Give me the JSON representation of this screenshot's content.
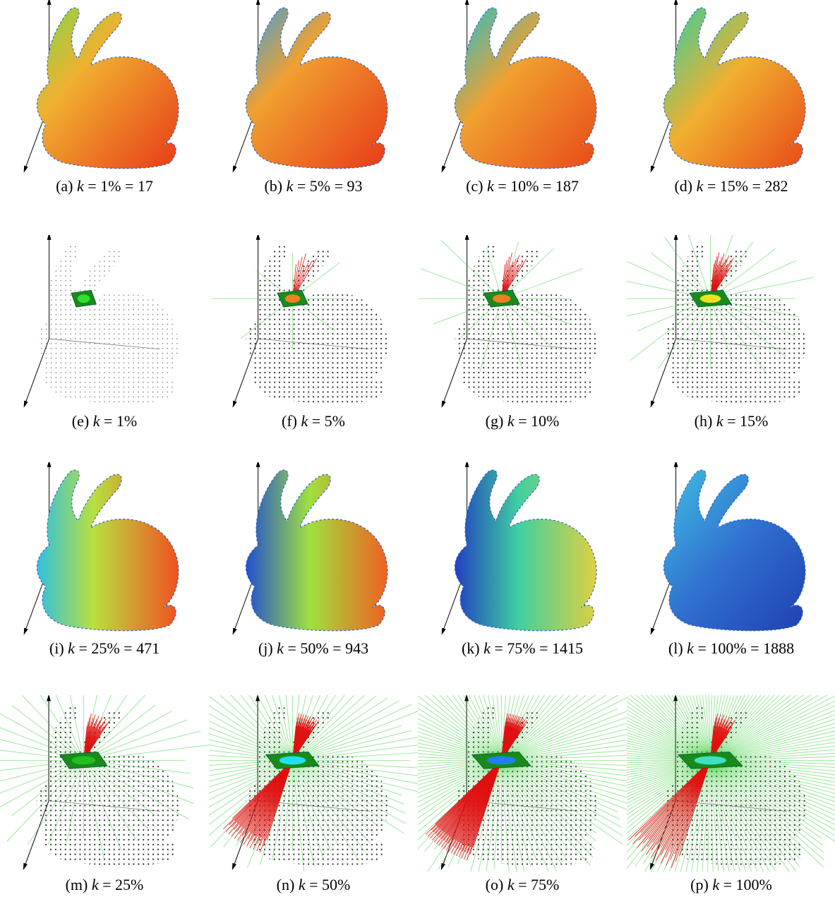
{
  "panels": [
    {
      "label": "(a)",
      "var": "k",
      "expr": "= 1% = 17"
    },
    {
      "label": "(b)",
      "var": "k",
      "expr": "= 5% = 93"
    },
    {
      "label": "(c)",
      "var": "k",
      "expr": "= 10% = 187"
    },
    {
      "label": "(d)",
      "var": "k",
      "expr": "= 15% = 282"
    },
    {
      "label": "(e)",
      "var": "k",
      "expr": "= 1%"
    },
    {
      "label": "(f)",
      "var": "k",
      "expr": "= 5%"
    },
    {
      "label": "(g)",
      "var": "k",
      "expr": "= 10%"
    },
    {
      "label": "(h)",
      "var": "k",
      "expr": "= 15%"
    },
    {
      "label": "(i)",
      "var": "k",
      "expr": "= 25% = 471"
    },
    {
      "label": "(j)",
      "var": "k",
      "expr": "= 50% = 943"
    },
    {
      "label": "(k)",
      "var": "k",
      "expr": "= 75% = 1415"
    },
    {
      "label": "(l)",
      "var": "k",
      "expr": "= 100% = 1888"
    },
    {
      "label": "(m)",
      "var": "k",
      "expr": "= 25%"
    },
    {
      "label": "(n)",
      "var": "k",
      "expr": "= 50%"
    },
    {
      "label": "(o)",
      "var": "k",
      "expr": "= 75%"
    },
    {
      "label": "(p)",
      "var": "k",
      "expr": "= 100%"
    }
  ]
}
